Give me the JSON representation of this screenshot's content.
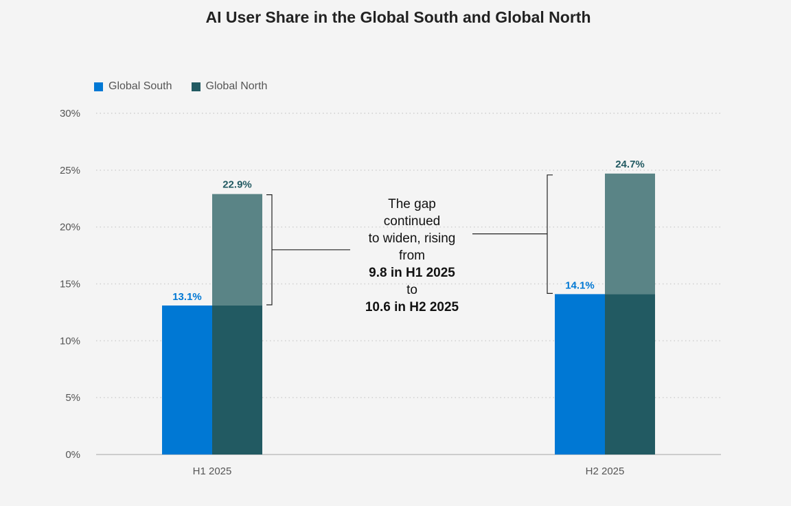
{
  "chart_data": {
    "type": "bar",
    "title": "AI User Share in the Global South and Global North",
    "categories": [
      "H1 2025",
      "H2 2025"
    ],
    "series": [
      {
        "name": "Global South",
        "values": [
          13.1,
          14.1
        ],
        "color": "#0078d4",
        "labels": [
          "13.1%",
          "14.1%"
        ]
      },
      {
        "name": "Global North",
        "values": [
          22.9,
          24.7
        ],
        "color": "#225a62",
        "overlay_color": "#5a8486",
        "labels": [
          "22.9%",
          "24.7%"
        ]
      }
    ],
    "ylim": [
      0,
      30
    ],
    "yticks": [
      "0%",
      "5%",
      "10%",
      "15%",
      "20%",
      "25%",
      "30%"
    ],
    "ytick_values": [
      0,
      5,
      10,
      15,
      20,
      25,
      30
    ],
    "xlabel": "",
    "ylabel": "",
    "grid": true,
    "legend": "top-left",
    "annotation": {
      "lines": [
        "The gap",
        "continued",
        "to widen, rising",
        "from"
      ],
      "bold1": "9.8 in H1 2025",
      "mid": "to",
      "bold2": "10.6 in H2 2025"
    }
  }
}
